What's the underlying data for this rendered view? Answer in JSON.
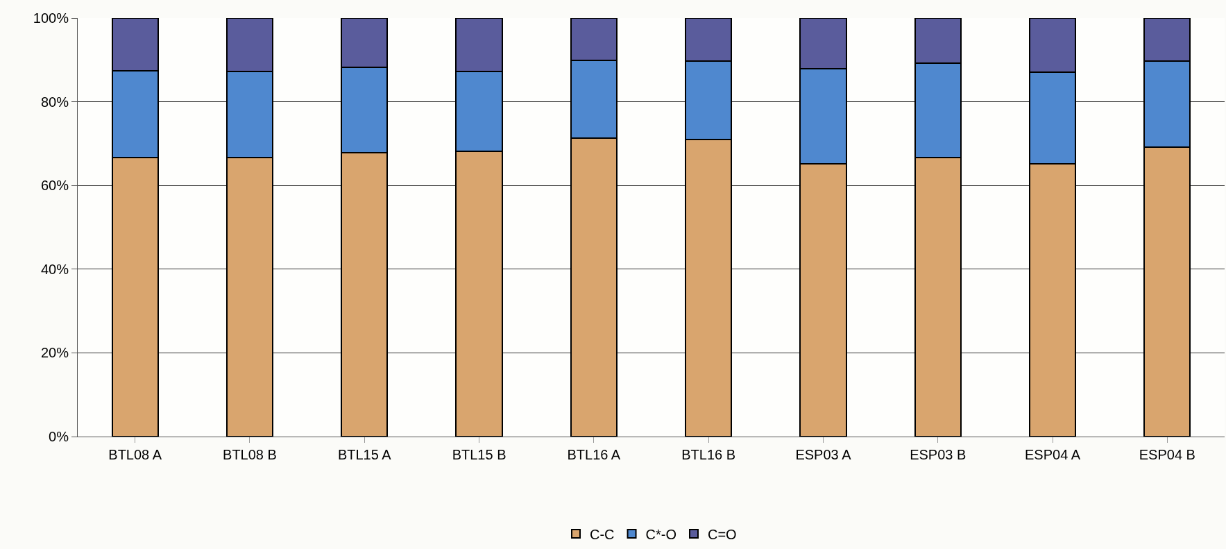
{
  "chart_data": {
    "type": "bar",
    "stacked": true,
    "categories": [
      "BTL08 A",
      "BTL08 B",
      "BTL15 A",
      "BTL15 B",
      "BTL16 A",
      "BTL16 B",
      "ESP03 A",
      "ESP03 B",
      "ESP04 A",
      "ESP04 B"
    ],
    "series": [
      {
        "name": "C-C",
        "color": "#d9a56e",
        "values": [
          66.6,
          66.6,
          67.8,
          68.1,
          71.3,
          71.0,
          65.2,
          66.6,
          65.2,
          69.2
        ]
      },
      {
        "name": "C*-O",
        "color": "#4f88cf",
        "values": [
          20.8,
          20.7,
          20.4,
          19.2,
          18.6,
          18.7,
          22.7,
          22.6,
          21.9,
          20.5
        ]
      },
      {
        "name": "C=O",
        "color": "#5a5c9c",
        "values": [
          12.6,
          12.7,
          11.8,
          12.7,
          10.1,
          10.3,
          12.1,
          10.8,
          12.9,
          10.3
        ]
      }
    ],
    "ylim": [
      0,
      100
    ],
    "yticks": [
      {
        "value": 0,
        "label": "0%"
      },
      {
        "value": 20,
        "label": "20%"
      },
      {
        "value": 40,
        "label": "40%"
      },
      {
        "value": 60,
        "label": "60%"
      },
      {
        "value": 80,
        "label": "80%"
      },
      {
        "value": 100,
        "label": "100%"
      }
    ],
    "grid": "y",
    "legend": "bottom"
  }
}
